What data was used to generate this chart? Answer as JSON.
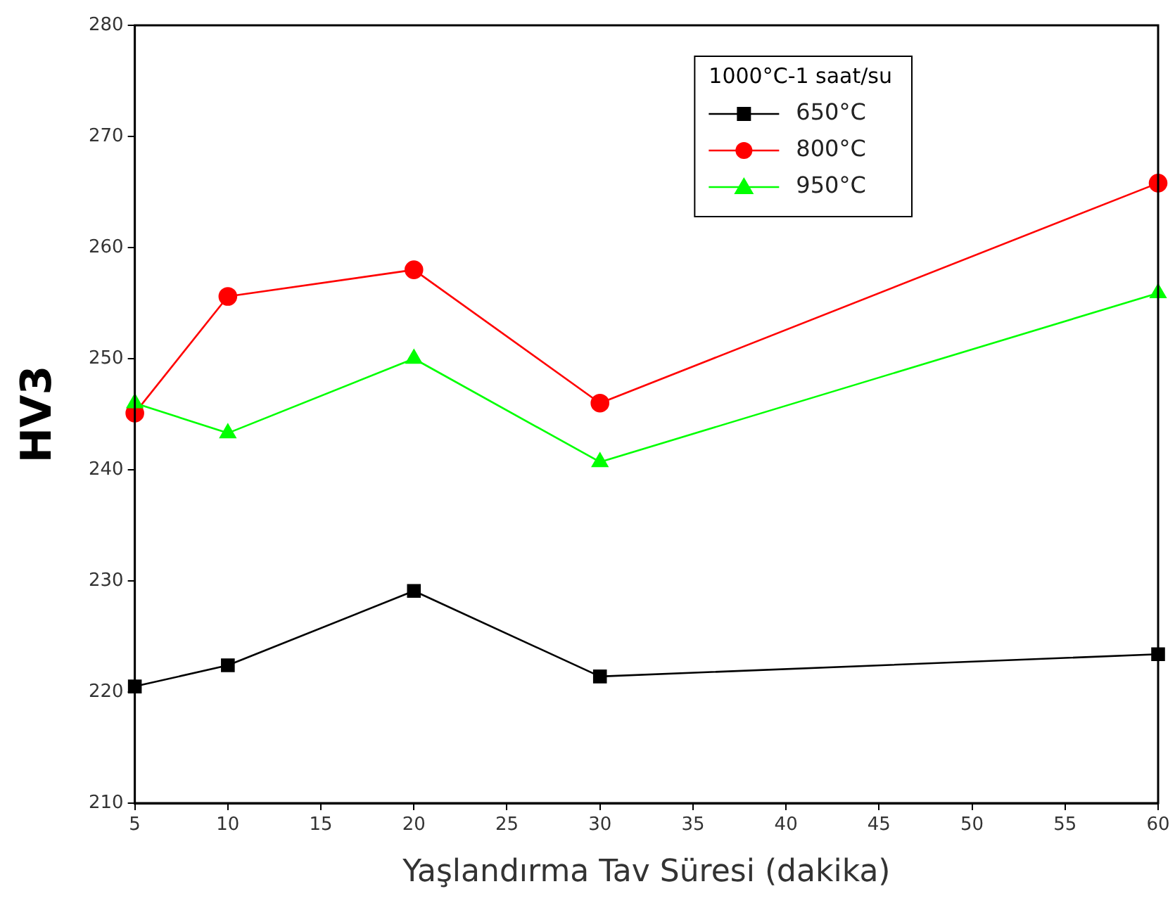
{
  "chart_data": {
    "type": "line",
    "xlabel": "Yaşlandırma Tav Süresi (dakika)",
    "ylabel": "HV3",
    "legend_title": "1000°C-1 saat/su",
    "legend": "top right",
    "grid": false,
    "x": [
      5,
      10,
      20,
      30,
      60
    ],
    "xlim": [
      5,
      60
    ],
    "xticks": [
      5,
      10,
      15,
      20,
      25,
      30,
      35,
      40,
      45,
      50,
      55,
      60
    ],
    "ylim": [
      210,
      280
    ],
    "yticks": [
      210,
      220,
      230,
      240,
      250,
      260,
      270,
      280
    ],
    "series": [
      {
        "name": "650°C",
        "color": "#000000",
        "marker": "square",
        "values": [
          220.5,
          222.4,
          229.1,
          221.4,
          223.4
        ]
      },
      {
        "name": "800°C",
        "color": "#ff0000",
        "marker": "circle",
        "values": [
          245.1,
          255.6,
          258,
          246,
          265.8
        ]
      },
      {
        "name": "950°C",
        "color": "#00ff00",
        "marker": "triangle",
        "values": [
          246,
          243.3,
          250,
          240.7,
          255.9
        ]
      }
    ]
  }
}
